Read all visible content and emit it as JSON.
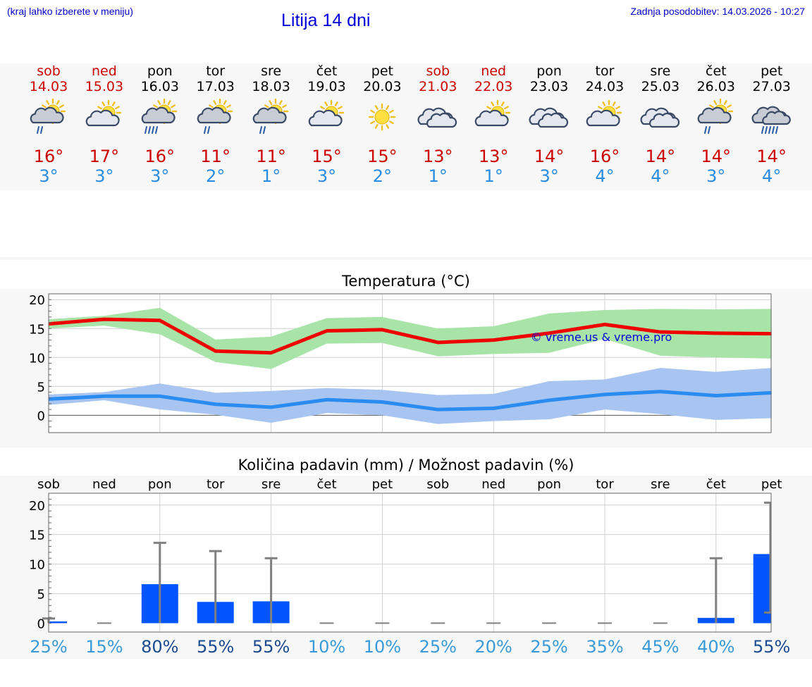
{
  "header": {
    "left_note": "(kraj lahko izberete v meniju)",
    "title": "Litija 14 dni",
    "updated": "Zadnja posodobitev: 14.03.2026 - 10:27"
  },
  "days": [
    {
      "name": "sob",
      "date": "14.03",
      "tmax": "16°",
      "tmin": "3°",
      "weekend": true,
      "icon": "sun-cloud-rain-icon",
      "pct": "25%"
    },
    {
      "name": "ned",
      "date": "15.03",
      "tmax": "17°",
      "tmin": "3°",
      "weekend": true,
      "icon": "sun-cloud-icon",
      "pct": "15%"
    },
    {
      "name": "pon",
      "date": "16.03",
      "tmax": "16°",
      "tmin": "3°",
      "weekend": false,
      "icon": "sun-cloud-heavy-rain-icon",
      "pct": "80%"
    },
    {
      "name": "tor",
      "date": "17.03",
      "tmax": "11°",
      "tmin": "2°",
      "weekend": false,
      "icon": "sun-cloud-rain-icon",
      "pct": "55%"
    },
    {
      "name": "sre",
      "date": "18.03",
      "tmax": "11°",
      "tmin": "1°",
      "weekend": false,
      "icon": "sun-cloud-rain-icon",
      "pct": "55%"
    },
    {
      "name": "čet",
      "date": "19.03",
      "tmax": "15°",
      "tmin": "3°",
      "weekend": false,
      "icon": "sun-cloud-icon",
      "pct": "10%"
    },
    {
      "name": "pet",
      "date": "20.03",
      "tmax": "15°",
      "tmin": "2°",
      "weekend": false,
      "icon": "sun-icon",
      "pct": "10%"
    },
    {
      "name": "sob",
      "date": "21.03",
      "tmax": "13°",
      "tmin": "1°",
      "weekend": true,
      "icon": "cloud-icon",
      "pct": "25%"
    },
    {
      "name": "ned",
      "date": "22.03",
      "tmax": "13°",
      "tmin": "1°",
      "weekend": true,
      "icon": "sun-cloud-icon",
      "pct": "20%"
    },
    {
      "name": "pon",
      "date": "23.03",
      "tmax": "14°",
      "tmin": "3°",
      "weekend": false,
      "icon": "cloud-icon",
      "pct": "25%"
    },
    {
      "name": "tor",
      "date": "24.03",
      "tmax": "16°",
      "tmin": "4°",
      "weekend": false,
      "icon": "sun-cloud-icon",
      "pct": "35%"
    },
    {
      "name": "sre",
      "date": "25.03",
      "tmax": "14°",
      "tmin": "4°",
      "weekend": false,
      "icon": "cloud-icon",
      "pct": "45%"
    },
    {
      "name": "čet",
      "date": "26.03",
      "tmax": "14°",
      "tmin": "3°",
      "weekend": false,
      "icon": "sun-cloud-rain-icon",
      "pct": "40%"
    },
    {
      "name": "pet",
      "date": "27.03",
      "tmax": "14°",
      "tmin": "4°",
      "weekend": false,
      "icon": "cloud-heavy-rain-icon",
      "pct": "55%"
    }
  ],
  "colors": {
    "max_line": "#ee0000",
    "max_band": "#a8e4a8",
    "min_line": "#2a8cf0",
    "min_band": "#a8c4f0",
    "bar": "#0055ff",
    "errbar": "#808080",
    "watermark": "#0000dd",
    "pct_high": "#1a4a90",
    "pct_low": "#3a9ad8"
  },
  "chart_data": [
    {
      "type": "line",
      "title": "Temperatura (°C)",
      "ylim": [
        -3,
        21
      ],
      "yticks": [
        "20",
        "15",
        "10",
        "5",
        "0"
      ],
      "watermark": "© vreme.us & vreme.pro",
      "x": [
        0,
        1,
        2,
        3,
        4,
        5,
        6,
        7,
        8,
        9,
        10,
        11,
        12,
        13
      ],
      "series": [
        {
          "name": "max",
          "values": [
            15.8,
            16.6,
            16.4,
            11.1,
            10.8,
            14.6,
            14.8,
            12.6,
            13.0,
            14.2,
            15.7,
            14.4,
            14.2,
            14.1
          ],
          "band_low": [
            15.0,
            15.5,
            14.0,
            9.2,
            8.0,
            12.4,
            12.5,
            10.2,
            10.6,
            10.8,
            13.2,
            10.3,
            10.0,
            9.8
          ],
          "band_high": [
            16.6,
            17.2,
            18.6,
            13.1,
            13.6,
            16.8,
            17.0,
            15.0,
            15.4,
            17.6,
            18.2,
            18.4,
            18.3,
            18.4
          ]
        },
        {
          "name": "min",
          "values": [
            2.8,
            3.3,
            3.3,
            1.9,
            1.4,
            2.7,
            2.3,
            1.0,
            1.2,
            2.6,
            3.6,
            4.1,
            3.4,
            3.9
          ],
          "band_low": [
            1.8,
            2.6,
            1.0,
            0.1,
            -1.3,
            0.4,
            0.0,
            -1.5,
            -1.0,
            -0.7,
            1.0,
            0.2,
            -0.8,
            -0.5
          ],
          "band_high": [
            3.6,
            4.0,
            5.5,
            3.9,
            4.2,
            4.7,
            4.4,
            3.5,
            3.7,
            5.9,
            6.2,
            8.2,
            7.5,
            8.2
          ]
        }
      ]
    },
    {
      "type": "bar",
      "title": "Količina padavin (mm) / Možnost padavin (%)",
      "ylim": [
        -1.5,
        22
      ],
      "yticks": [
        "20",
        "15",
        "10",
        "5",
        "0"
      ],
      "categories": [
        "sob",
        "ned",
        "pon",
        "tor",
        "sre",
        "čet",
        "pet",
        "sob",
        "ned",
        "pon",
        "tor",
        "sre",
        "čet",
        "pet"
      ],
      "values": [
        0.3,
        0,
        6.6,
        3.6,
        3.7,
        0,
        0,
        0,
        0,
        0,
        0,
        0,
        0.9,
        11.7
      ],
      "err_high": [
        0.8,
        0,
        13.6,
        12.2,
        11.0,
        0,
        0,
        0,
        0,
        0,
        0,
        0,
        11.0,
        20.4
      ],
      "err_low": [
        0,
        0,
        0,
        0,
        0,
        0,
        0,
        0,
        0,
        0,
        0,
        0,
        0,
        1.8
      ],
      "probability": [
        "25%",
        "15%",
        "80%",
        "55%",
        "55%",
        "10%",
        "10%",
        "25%",
        "20%",
        "25%",
        "35%",
        "45%",
        "40%",
        "55%"
      ]
    }
  ]
}
